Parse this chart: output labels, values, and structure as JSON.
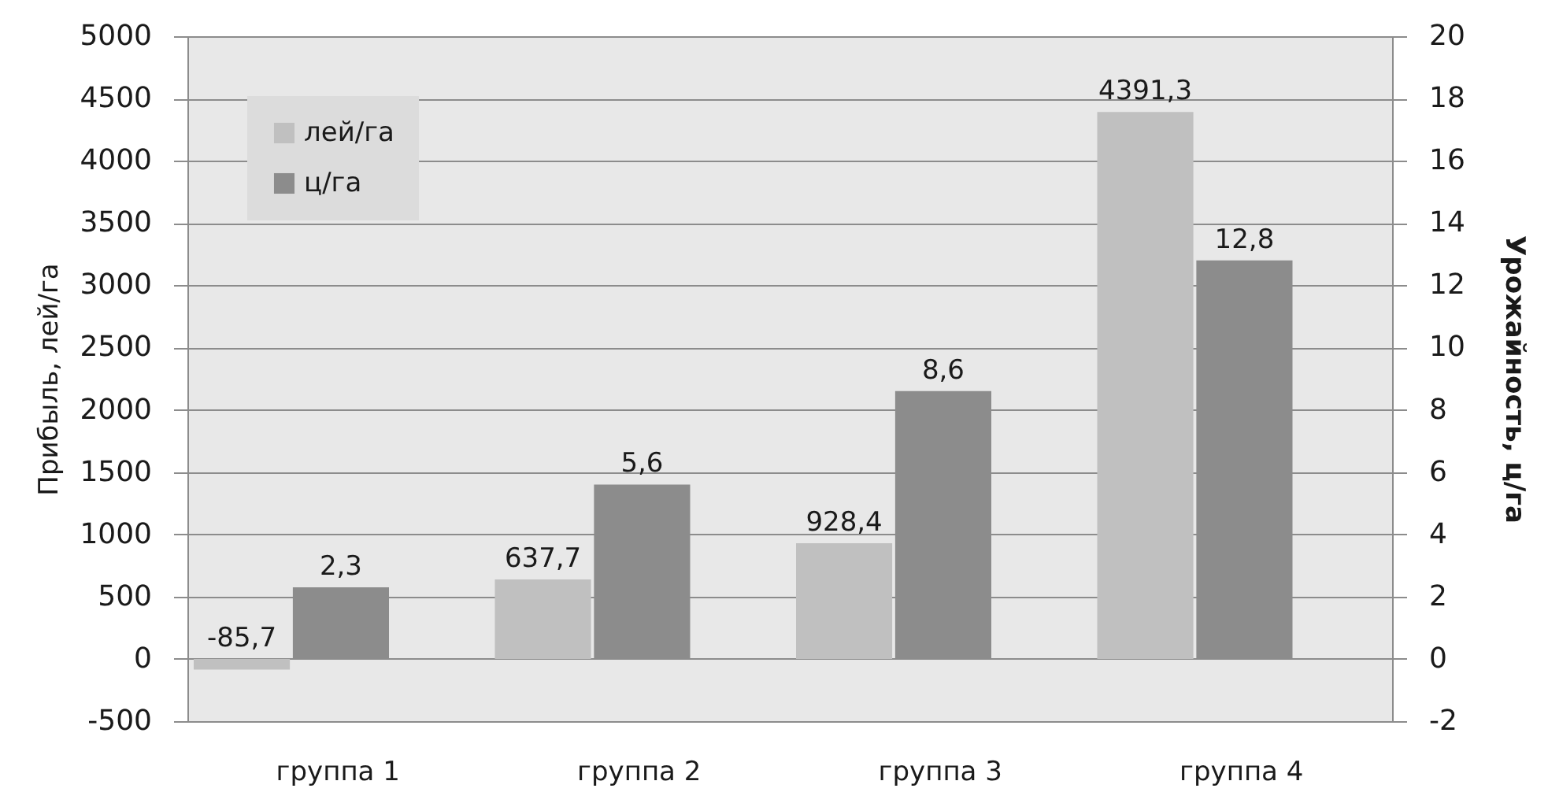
{
  "chart_data": {
    "type": "bar",
    "ylabel": "Прибыль, лей/га",
    "y2label": "Урожайность, ц/га",
    "categories": [
      "группа 1",
      "группа 2",
      "группа 3",
      "группа 4"
    ],
    "series": [
      {
        "name": "лей/га",
        "color": "#c0c0c0",
        "values": [
          -85.7,
          637.7,
          928.4,
          4391.3
        ],
        "value_labels": [
          "-85,7",
          "637,7",
          "928,4",
          "4391,3"
        ]
      },
      {
        "name": "ц/га",
        "color": "#8c8c8c",
        "axis": "y2",
        "values": [
          2.3,
          5.6,
          8.6,
          12.8
        ],
        "value_labels": [
          "2,3",
          "5,6",
          "8,6",
          "12,8"
        ]
      }
    ],
    "ylim": [
      -500,
      5000
    ],
    "yticks": [
      -500,
      0,
      500,
      1000,
      1500,
      2000,
      2500,
      3000,
      3500,
      4000,
      4500,
      5000
    ],
    "y2lim": [
      -2,
      20
    ],
    "y2ticks": [
      -2,
      0,
      2,
      4,
      6,
      8,
      10,
      12,
      14,
      16,
      18,
      20
    ],
    "grid": "y",
    "legend": "top left"
  }
}
